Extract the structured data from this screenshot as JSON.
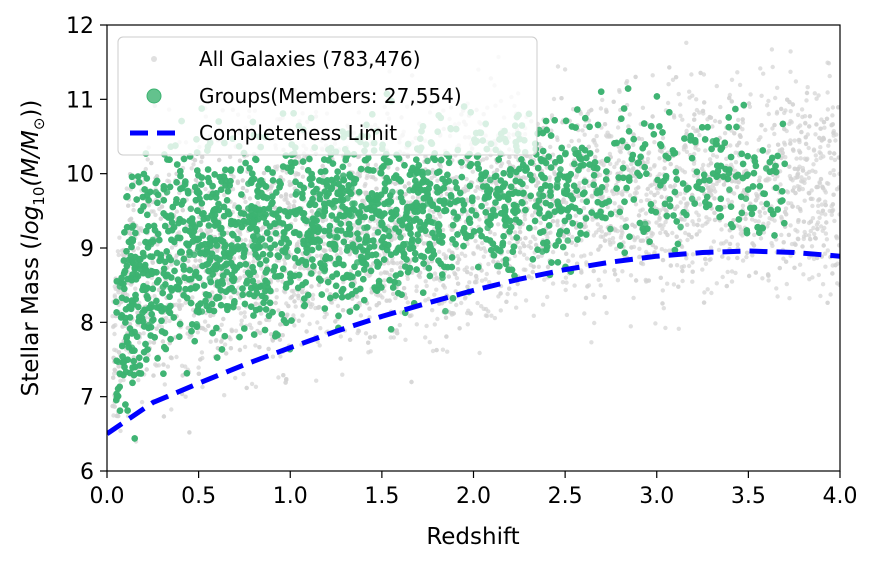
{
  "chart_data": {
    "type": "scatter",
    "title": "",
    "xlabel": "Redshift",
    "ylabel_prefix": "Stellar Mass (",
    "ylabel_math": "log",
    "ylabel_sub": "10",
    "ylabel_mid": "(M/M",
    "ylabel_sun": "⊙",
    "ylabel_suffix": "))",
    "xlim": [
      0.0,
      4.0
    ],
    "ylim": [
      6,
      12
    ],
    "xticks": [
      "0.0",
      "0.5",
      "1.0",
      "1.5",
      "2.0",
      "2.5",
      "3.0",
      "3.5",
      "4.0"
    ],
    "xtick_values": [
      0.0,
      0.5,
      1.0,
      1.5,
      2.0,
      2.5,
      3.0,
      3.5,
      4.0
    ],
    "yticks": [
      "6",
      "7",
      "8",
      "9",
      "10",
      "11",
      "12"
    ],
    "ytick_values": [
      6,
      7,
      8,
      9,
      10,
      11,
      12
    ],
    "grid": false,
    "legend_position": "top-left",
    "series": [
      {
        "name": "All Galaxies (783,476)",
        "kind": "scatter",
        "color": "#d3d3d3",
        "envelope": {
          "z": [
            0.03,
            0.1,
            0.2,
            0.3,
            0.5,
            0.75,
            1.0,
            1.5,
            2.0,
            2.3,
            2.5,
            3.0,
            3.5,
            3.8,
            4.0
          ],
          "upper": [
            9.2,
            10.6,
            11.2,
            11.4,
            11.4,
            11.5,
            11.6,
            11.7,
            11.8,
            11.8,
            11.8,
            11.8,
            11.9,
            12.0,
            12.0
          ],
          "lower": [
            6.0,
            6.0,
            6.0,
            6.0,
            6.0,
            6.3,
            6.6,
            6.9,
            7.1,
            7.4,
            7.6,
            7.7,
            7.8,
            7.8,
            7.8
          ]
        }
      },
      {
        "name": "Groups(Members: 27,554)",
        "kind": "scatter",
        "color": "#3cb371",
        "envelope": {
          "z": [
            0.05,
            0.1,
            0.2,
            0.3,
            0.5,
            0.75,
            1.0,
            1.25,
            1.5,
            1.8,
            2.0,
            2.3,
            2.5,
            3.0,
            3.3,
            3.5,
            3.7
          ],
          "upper": [
            9.5,
            10.3,
            10.9,
            11.1,
            11.2,
            11.2,
            11.2,
            11.2,
            11.3,
            11.2,
            11.3,
            11.4,
            11.5,
            11.4,
            11.3,
            11.3,
            11.1
          ],
          "lower": [
            6.0,
            6.1,
            6.4,
            6.7,
            7.0,
            7.2,
            7.4,
            7.5,
            7.7,
            7.9,
            8.0,
            8.2,
            8.3,
            8.4,
            8.5,
            8.4,
            8.3
          ]
        }
      },
      {
        "name": "Completeness Limit",
        "kind": "line",
        "color": "#0000ff",
        "x": [
          0.0,
          0.25,
          0.5,
          0.75,
          1.0,
          1.25,
          1.5,
          1.75,
          2.0,
          2.25,
          2.5,
          2.75,
          3.0,
          3.25,
          3.5,
          3.75,
          4.0
        ],
        "y": [
          6.5,
          6.92,
          7.18,
          7.43,
          7.66,
          7.88,
          8.08,
          8.26,
          8.43,
          8.58,
          8.71,
          8.81,
          8.89,
          8.94,
          8.96,
          8.94,
          8.89
        ]
      }
    ]
  }
}
